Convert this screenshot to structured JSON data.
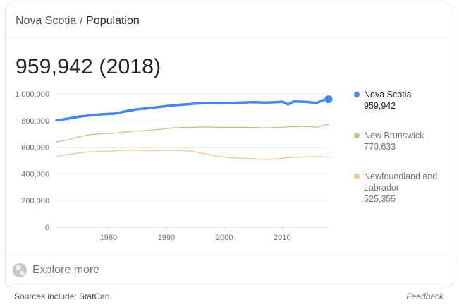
{
  "breadcrumb": {
    "place": "Nova Scotia",
    "separator": "/",
    "topic": "Population"
  },
  "headline": "959,942 (2018)",
  "footer": {
    "explore_label": "Explore more",
    "sources_label": "Sources include: StatCan",
    "feedback_label": "Feedback"
  },
  "chart_data": {
    "type": "line",
    "title": "",
    "xlabel": "",
    "ylabel": "",
    "xlim": [
      1971,
      2018
    ],
    "ylim": [
      0,
      1000000
    ],
    "x_ticks": [
      1980,
      1990,
      2000,
      2010
    ],
    "y_ticks": [
      0,
      200000,
      400000,
      600000,
      800000,
      1000000
    ],
    "y_tick_labels": [
      "0",
      "200,000",
      "400,000",
      "600,000",
      "800,000",
      "1,000,000"
    ],
    "grid": true,
    "legend_position": "right",
    "series": [
      {
        "name": "Nova Scotia",
        "latest_label": "959,942",
        "color": "#4285f4",
        "x": [
          1971,
          1973,
          1975,
          1977,
          1979,
          1981,
          1983,
          1985,
          1987,
          1989,
          1991,
          1993,
          1995,
          1997,
          1999,
          2001,
          2003,
          2005,
          2007,
          2009,
          2010,
          2011,
          2012,
          2014,
          2016,
          2017,
          2018
        ],
        "y": [
          800000,
          815000,
          830000,
          840000,
          848000,
          852000,
          870000,
          885000,
          893000,
          903000,
          913000,
          920000,
          927000,
          931000,
          933000,
          932000,
          935000,
          938000,
          935000,
          938000,
          942000,
          921000,
          943000,
          940000,
          933000,
          953000,
          959942
        ]
      },
      {
        "name": "New Brunswick",
        "latest_label": "770,633",
        "color": "#a8d08d",
        "x": [
          1971,
          1973,
          1975,
          1977,
          1979,
          1981,
          1983,
          1985,
          1987,
          1989,
          1991,
          1993,
          1995,
          1997,
          1999,
          2001,
          2003,
          2005,
          2007,
          2009,
          2011,
          2013,
          2015,
          2016,
          2017,
          2018
        ],
        "y": [
          640000,
          655000,
          680000,
          695000,
          702000,
          705000,
          715000,
          722000,
          727000,
          735000,
          745000,
          748000,
          750000,
          752000,
          750000,
          749000,
          750000,
          748000,
          745000,
          748000,
          752000,
          756000,
          755000,
          747000,
          765000,
          770633
        ]
      },
      {
        "name": "Newfoundland and Labrador",
        "latest_label": "525,355",
        "color": "#f7c495",
        "x": [
          1971,
          1973,
          1975,
          1977,
          1979,
          1981,
          1983,
          1985,
          1987,
          1989,
          1991,
          1993,
          1995,
          1997,
          1999,
          2001,
          2003,
          2005,
          2007,
          2009,
          2011,
          2013,
          2015,
          2016,
          2017,
          2018
        ],
        "y": [
          530000,
          545000,
          558000,
          566000,
          570000,
          572000,
          578000,
          578000,
          574000,
          576000,
          578000,
          575000,
          565000,
          547000,
          532000,
          520000,
          518000,
          515000,
          508000,
          512000,
          522000,
          526000,
          528000,
          530000,
          527000,
          525355
        ]
      }
    ]
  }
}
